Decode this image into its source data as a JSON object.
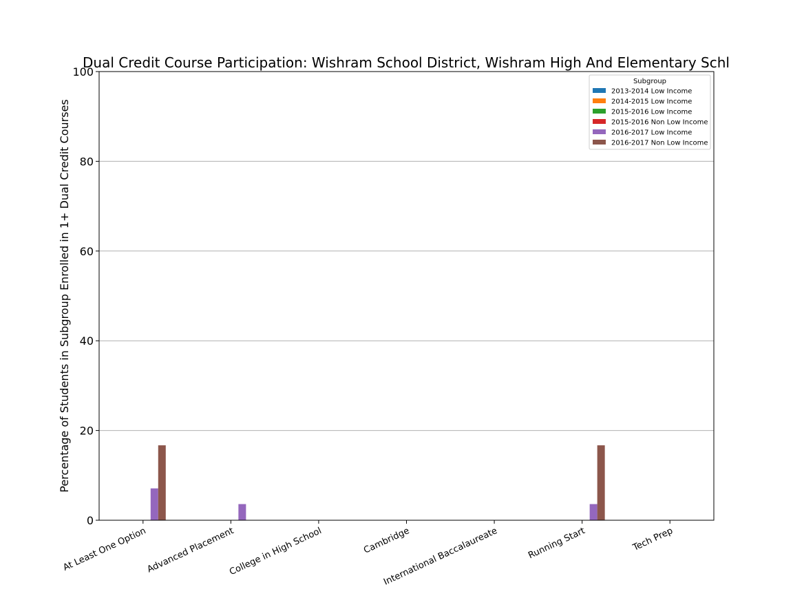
{
  "chart_data": {
    "type": "bar",
    "title": "Dual Credit Course Participation: Wishram School District, Wishram High And Elementary Schl",
    "xlabel": "",
    "ylabel": "Percentage of Students in Subgroup Enrolled in 1+ Dual Credit Courses",
    "ylim": [
      0,
      100
    ],
    "yticks": [
      "0",
      "20",
      "40",
      "60",
      "80",
      "100"
    ],
    "grid": "y",
    "legend_title": "Subgroup",
    "legend_position": "top-right",
    "categories": [
      "At Least One Option",
      "Advanced Placement",
      "College in High School",
      "Cambridge",
      "International Baccalaureate",
      "Running Start",
      "Tech Prep"
    ],
    "series": [
      {
        "name": "2013-2014 Low Income",
        "color": "#1f77b4",
        "values": [
          0,
          0,
          0,
          0,
          0,
          0,
          0
        ]
      },
      {
        "name": "2014-2015 Low Income",
        "color": "#ff7f0e",
        "values": [
          0,
          0,
          0,
          0,
          0,
          0,
          0
        ]
      },
      {
        "name": "2015-2016 Low Income",
        "color": "#2ca02c",
        "values": [
          0,
          0,
          0,
          0,
          0,
          0,
          0
        ]
      },
      {
        "name": "2015-2016 Non Low Income",
        "color": "#d62728",
        "values": [
          0,
          0,
          0,
          0,
          0,
          0,
          0
        ]
      },
      {
        "name": "2016-2017 Low Income",
        "color": "#9467bd",
        "values": [
          7.1,
          3.6,
          0,
          0,
          0,
          3.6,
          0
        ]
      },
      {
        "name": "2016-2017 Non Low Income",
        "color": "#8c564b",
        "values": [
          16.7,
          0,
          0,
          0,
          0,
          16.7,
          0
        ]
      }
    ]
  }
}
